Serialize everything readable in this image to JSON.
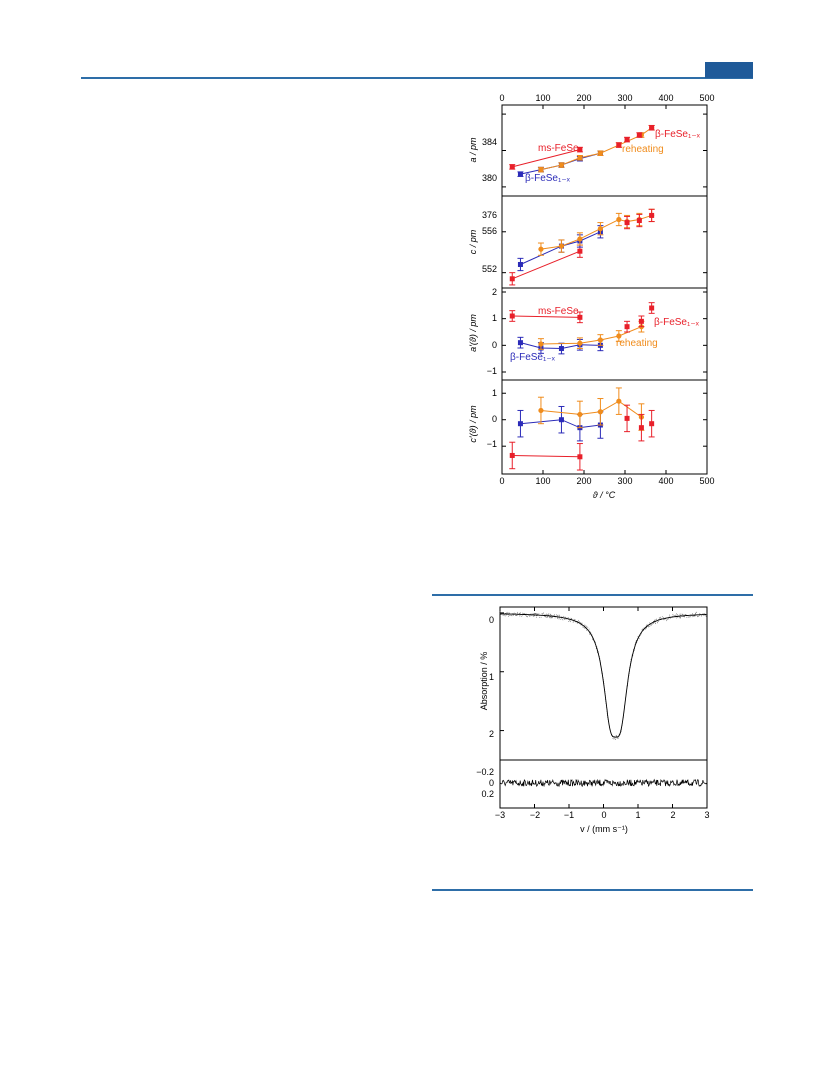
{
  "colors": {
    "ms": "#e8202a",
    "beta": "#2b2bb8",
    "reheat": "#f08c1c",
    "rule": "#2e6ea8",
    "tab": "#1f5a99"
  },
  "figure1": {
    "x_axis": {
      "label": "ϑ / °C",
      "ticks": [
        0,
        100,
        200,
        300,
        400,
        500
      ],
      "tick_labels": [
        "0",
        "100",
        "200",
        "300",
        "400",
        "500"
      ]
    },
    "panel_a": {
      "ylabel": "a / pm",
      "ylim": [
        375,
        385
      ],
      "ticks": [
        376,
        380,
        384
      ],
      "tick_labels": [
        "376",
        "380",
        "384"
      ],
      "annotations": [
        "ms-FeSe",
        "β-FeSe₁₋ₓ",
        "reheating",
        "β-FeSe₁₋ₓ"
      ]
    },
    "panel_c": {
      "ylabel": "c / pm",
      "ylim": [
        550.5,
        559.5
      ],
      "ticks": [
        552,
        556
      ],
      "tick_labels": [
        "552",
        "556"
      ]
    },
    "panel_ad": {
      "ylabel": "a′(ϑ) / pm",
      "ylim": [
        -1.3,
        2.15
      ],
      "ticks": [
        -1,
        0,
        1,
        2
      ],
      "tick_labels": [
        "−1",
        "0",
        "1",
        "2"
      ],
      "annotations": [
        "ms-FeSe",
        "β-FeSe₁₋ₓ",
        "reheating",
        "β-FeSe₁₋ₓ"
      ]
    },
    "panel_cd": {
      "ylabel": "c′(ϑ) / pm",
      "ylim": [
        -2.05,
        1.5
      ],
      "ticks": [
        -1,
        0,
        1
      ],
      "tick_labels": [
        "−1",
        "0",
        "1"
      ]
    }
  },
  "chart_data": [
    {
      "type": "scatter",
      "ylabel": "a / pm",
      "xlabel": "ϑ / °C",
      "xlim": [
        0,
        500
      ],
      "ylim": [
        375,
        385
      ],
      "series": [
        {
          "name": "ms-FeSe",
          "x": [
            25,
            190
          ],
          "y": [
            378.2,
            380.1
          ]
        },
        {
          "name": "β-FeSe₁₋ₓ",
          "x": [
            45,
            95,
            145,
            190,
            240
          ],
          "y": [
            377.4,
            377.9,
            378.4,
            379.1,
            379.7
          ]
        },
        {
          "name": "reheating",
          "x": [
            95,
            145,
            190,
            240,
            285,
            340,
            365
          ],
          "y": [
            377.9,
            378.4,
            379.2,
            379.7,
            380.6,
            381.7,
            382.5
          ]
        },
        {
          "name": "β-FeSe₁₋ₓ",
          "x": [
            285,
            305,
            335,
            365
          ],
          "y": [
            380.6,
            381.2,
            381.7,
            382.5
          ]
        }
      ]
    },
    {
      "type": "scatter",
      "ylabel": "c / pm",
      "xlabel": "ϑ / °C",
      "xlim": [
        0,
        500
      ],
      "ylim": [
        550.5,
        559.5
      ],
      "series": [
        {
          "name": "ms-FeSe",
          "x": [
            25,
            190
          ],
          "y": [
            551.4,
            554.1
          ]
        },
        {
          "name": "β-FeSe₁₋ₓ",
          "x": [
            45,
            145,
            190,
            240
          ],
          "y": [
            552.8,
            554.6,
            555.1,
            556.0
          ]
        },
        {
          "name": "reheating",
          "x": [
            95,
            145,
            190,
            240,
            285,
            305,
            335,
            365
          ],
          "y": [
            554.3,
            554.6,
            555.3,
            556.3,
            557.2,
            557.0,
            557.2,
            557.6
          ]
        },
        {
          "name": "β-FeSe₁₋ₓ",
          "x": [
            305,
            335,
            365
          ],
          "y": [
            556.9,
            557.1,
            557.6
          ]
        }
      ]
    },
    {
      "type": "scatter",
      "ylabel": "a′(ϑ) / pm",
      "xlabel": "ϑ / °C",
      "xlim": [
        0,
        500
      ],
      "ylim": [
        -1.3,
        2.15
      ],
      "series": [
        {
          "name": "ms-FeSe",
          "x": [
            25,
            190
          ],
          "y": [
            1.1,
            1.05
          ]
        },
        {
          "name": "β-FeSe₁₋ₓ",
          "x": [
            45,
            95,
            145,
            190,
            240
          ],
          "y": [
            0.1,
            -0.1,
            -0.12,
            0.02,
            0.0
          ]
        },
        {
          "name": "reheating",
          "x": [
            95,
            190,
            240,
            285,
            340
          ],
          "y": [
            0.05,
            0.08,
            0.2,
            0.35,
            0.7
          ]
        },
        {
          "name": "β-FeSe₁₋ₓ",
          "x": [
            305,
            340,
            365
          ],
          "y": [
            0.7,
            0.9,
            1.4
          ]
        }
      ]
    },
    {
      "type": "scatter",
      "ylabel": "c′(ϑ) / pm",
      "xlabel": "ϑ / °C",
      "xlim": [
        0,
        500
      ],
      "ylim": [
        -2.05,
        1.5
      ],
      "series": [
        {
          "name": "ms-FeSe",
          "x": [
            25,
            190
          ],
          "y": [
            -1.35,
            -1.4
          ]
        },
        {
          "name": "β-FeSe₁₋ₓ",
          "x": [
            45,
            145,
            190,
            240
          ],
          "y": [
            -0.15,
            0.0,
            -0.3,
            -0.2
          ]
        },
        {
          "name": "reheating",
          "x": [
            95,
            190,
            240,
            285,
            340
          ],
          "y": [
            0.35,
            0.2,
            0.3,
            0.7,
            0.1
          ]
        },
        {
          "name": "β-FeSe₁₋ₓ",
          "x": [
            305,
            340,
            365
          ],
          "y": [
            0.05,
            -0.3,
            -0.15
          ]
        }
      ]
    },
    {
      "type": "scatter",
      "xlabel": "v / (mm s⁻¹)",
      "ylabel": "Absorption / %",
      "xlim": [
        -3,
        3
      ],
      "ylim": [
        2.5,
        -0.1
      ],
      "x_ticks": [
        "−3",
        "−2",
        "−1",
        "0",
        "1",
        "2",
        "3"
      ],
      "y_ticks": [
        "0",
        "1",
        "2"
      ],
      "residual_ticks": [
        "−0.2",
        "0",
        "0.2"
      ],
      "fit": {
        "center": 0.35,
        "depth": 2.25,
        "halfwidth": 0.26,
        "split": 0.15
      }
    }
  ]
}
